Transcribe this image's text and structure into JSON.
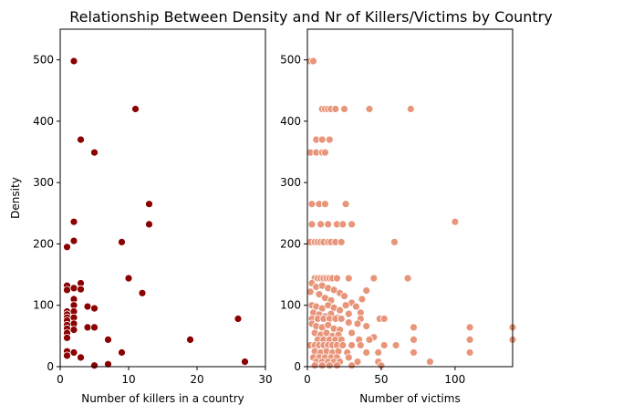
{
  "figure": {
    "title": "Relationship Between Density and Nr of Killers/Victims by Country"
  },
  "chart_data": [
    {
      "type": "scatter",
      "xlabel": "Number of killers in a country",
      "ylabel": "Density",
      "xlim": [
        0,
        30
      ],
      "ylim": [
        0,
        550
      ],
      "xticks": [
        0,
        10,
        20,
        30
      ],
      "yticks": [
        0,
        100,
        200,
        300,
        400,
        500
      ],
      "grid": false,
      "color": "#8b0000",
      "points": [
        [
          2,
          498
        ],
        [
          11,
          420
        ],
        [
          3,
          370
        ],
        [
          5,
          349
        ],
        [
          13,
          265
        ],
        [
          13,
          232
        ],
        [
          2,
          236
        ],
        [
          2,
          205
        ],
        [
          9,
          203
        ],
        [
          1,
          195
        ],
        [
          10,
          144
        ],
        [
          12,
          120
        ],
        [
          3,
          136
        ],
        [
          1,
          132
        ],
        [
          1,
          125
        ],
        [
          2,
          128
        ],
        [
          2,
          110
        ],
        [
          3,
          126
        ],
        [
          4,
          98
        ],
        [
          5,
          95
        ],
        [
          1,
          90
        ],
        [
          1,
          85
        ],
        [
          1,
          80
        ],
        [
          2,
          100
        ],
        [
          2,
          90
        ],
        [
          2,
          80
        ],
        [
          2,
          70
        ],
        [
          1,
          75
        ],
        [
          1,
          68
        ],
        [
          1,
          62
        ],
        [
          2,
          60
        ],
        [
          4,
          64
        ],
        [
          5,
          64
        ],
        [
          1,
          55
        ],
        [
          1,
          47
        ],
        [
          7,
          44
        ],
        [
          19,
          44
        ],
        [
          26,
          78
        ],
        [
          1,
          25
        ],
        [
          1,
          18
        ],
        [
          2,
          23
        ],
        [
          3,
          15
        ],
        [
          9,
          23
        ],
        [
          5,
          2
        ],
        [
          7,
          4
        ],
        [
          27,
          8
        ]
      ]
    },
    {
      "type": "scatter",
      "xlabel": "Number of victims",
      "ylabel": "",
      "xlim": [
        0,
        139
      ],
      "ylim": [
        0,
        550
      ],
      "xticks": [
        0,
        50,
        100
      ],
      "yticks": [
        0,
        100,
        200,
        300,
        400,
        500
      ],
      "grid": false,
      "color": "#e8957a",
      "points": [
        [
          2,
          498
        ],
        [
          4,
          498
        ],
        [
          10,
          420
        ],
        [
          12,
          420
        ],
        [
          14,
          420
        ],
        [
          16,
          420
        ],
        [
          19,
          420
        ],
        [
          25,
          420
        ],
        [
          42,
          420
        ],
        [
          70,
          420
        ],
        [
          6,
          370
        ],
        [
          10,
          370
        ],
        [
          15,
          370
        ],
        [
          2,
          349
        ],
        [
          6,
          349
        ],
        [
          10,
          349
        ],
        [
          12,
          349
        ],
        [
          3,
          265
        ],
        [
          8,
          265
        ],
        [
          12,
          265
        ],
        [
          26,
          265
        ],
        [
          3,
          232
        ],
        [
          9,
          232
        ],
        [
          14,
          232
        ],
        [
          20,
          232
        ],
        [
          24,
          232
        ],
        [
          30,
          232
        ],
        [
          100,
          236
        ],
        [
          2,
          203
        ],
        [
          5,
          203
        ],
        [
          7,
          203
        ],
        [
          9,
          203
        ],
        [
          11,
          203
        ],
        [
          14,
          203
        ],
        [
          16,
          203
        ],
        [
          19,
          203
        ],
        [
          23,
          203
        ],
        [
          59,
          203
        ],
        [
          5,
          144
        ],
        [
          7,
          144
        ],
        [
          9,
          144
        ],
        [
          11,
          144
        ],
        [
          13,
          144
        ],
        [
          15,
          144
        ],
        [
          17,
          144
        ],
        [
          20,
          144
        ],
        [
          28,
          144
        ],
        [
          45,
          144
        ],
        [
          68,
          144
        ],
        [
          3,
          136
        ],
        [
          6,
          130
        ],
        [
          10,
          132
        ],
        [
          14,
          128
        ],
        [
          18,
          125
        ],
        [
          22,
          120
        ],
        [
          40,
          124
        ],
        [
          37,
          110
        ],
        [
          2,
          122
        ],
        [
          8,
          118
        ],
        [
          12,
          112
        ],
        [
          16,
          108
        ],
        [
          25,
          115
        ],
        [
          30,
          104
        ],
        [
          3,
          100
        ],
        [
          6,
          98
        ],
        [
          10,
          95
        ],
        [
          14,
          100
        ],
        [
          18,
          96
        ],
        [
          22,
          92
        ],
        [
          26,
          100
        ],
        [
          33,
          98
        ],
        [
          4,
          88
        ],
        [
          8,
          85
        ],
        [
          12,
          82
        ],
        [
          16,
          86
        ],
        [
          20,
          80
        ],
        [
          28,
          86
        ],
        [
          36,
          88
        ],
        [
          3,
          78
        ],
        [
          7,
          78
        ],
        [
          11,
          78
        ],
        [
          15,
          78
        ],
        [
          19,
          78
        ],
        [
          23,
          78
        ],
        [
          36,
          78
        ],
        [
          49,
          78
        ],
        [
          52,
          78
        ],
        [
          3,
          70
        ],
        [
          6,
          66
        ],
        [
          10,
          64
        ],
        [
          14,
          68
        ],
        [
          18,
          62
        ],
        [
          22,
          60
        ],
        [
          28,
          72
        ],
        [
          34,
          70
        ],
        [
          40,
          66
        ],
        [
          72,
          64
        ],
        [
          110,
          64
        ],
        [
          139,
          64
        ],
        [
          5,
          55
        ],
        [
          9,
          52
        ],
        [
          13,
          55
        ],
        [
          17,
          50
        ],
        [
          21,
          52
        ],
        [
          30,
          55
        ],
        [
          45,
          48
        ],
        [
          7,
          44
        ],
        [
          11,
          44
        ],
        [
          15,
          44
        ],
        [
          19,
          44
        ],
        [
          23,
          44
        ],
        [
          35,
          44
        ],
        [
          42,
          44
        ],
        [
          72,
          44
        ],
        [
          110,
          44
        ],
        [
          139,
          44
        ],
        [
          2,
          35
        ],
        [
          5,
          35
        ],
        [
          8,
          35
        ],
        [
          11,
          35
        ],
        [
          14,
          35
        ],
        [
          17,
          35
        ],
        [
          20,
          35
        ],
        [
          24,
          35
        ],
        [
          30,
          35
        ],
        [
          36,
          35
        ],
        [
          52,
          35
        ],
        [
          60,
          35
        ],
        [
          5,
          25
        ],
        [
          9,
          23
        ],
        [
          13,
          25
        ],
        [
          17,
          23
        ],
        [
          21,
          25
        ],
        [
          27,
          23
        ],
        [
          40,
          23
        ],
        [
          48,
          23
        ],
        [
          72,
          23
        ],
        [
          110,
          23
        ],
        [
          4,
          15
        ],
        [
          8,
          15
        ],
        [
          12,
          15
        ],
        [
          16,
          15
        ],
        [
          20,
          15
        ],
        [
          28,
          15
        ],
        [
          6,
          8
        ],
        [
          10,
          8
        ],
        [
          14,
          8
        ],
        [
          18,
          8
        ],
        [
          22,
          8
        ],
        [
          34,
          8
        ],
        [
          48,
          8
        ],
        [
          83,
          8
        ],
        [
          5,
          2
        ],
        [
          10,
          2
        ],
        [
          15,
          2
        ],
        [
          20,
          2
        ],
        [
          30,
          2
        ],
        [
          50,
          2
        ]
      ]
    }
  ]
}
